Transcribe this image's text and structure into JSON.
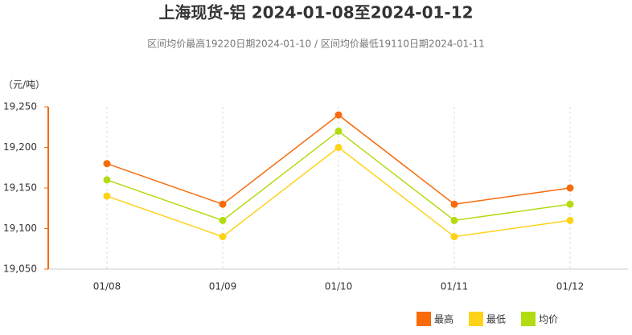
{
  "chart_data": {
    "type": "line",
    "title": "上海现货-铝 2024-01-08至2024-01-12",
    "subtitle": "区间均价最高19220日期2024-01-10 / 区间均价最低19110日期2024-01-11",
    "y_label": "（元/吨）",
    "categories": [
      "01/08",
      "01/09",
      "01/10",
      "01/11",
      "01/12"
    ],
    "series": [
      {
        "name": "最高",
        "color": "#f76b0a",
        "values": [
          19180,
          19130,
          19240,
          19130,
          19150
        ]
      },
      {
        "name": "最低",
        "color": "#ffd21a",
        "values": [
          19140,
          19090,
          19200,
          19090,
          19110
        ]
      },
      {
        "name": "均价",
        "color": "#b2dc12",
        "values": [
          19160,
          19110,
          19220,
          19110,
          19130
        ]
      }
    ],
    "ylim": [
      19050,
      19250
    ],
    "yticks": [
      {
        "value": 19050,
        "label": "19,050"
      },
      {
        "value": 19100,
        "label": "19,100"
      },
      {
        "value": 19150,
        "label": "19,150"
      },
      {
        "value": 19200,
        "label": "19,200"
      },
      {
        "value": 19250,
        "label": "19,250"
      }
    ],
    "grid": true,
    "legend": "bottom-right"
  }
}
